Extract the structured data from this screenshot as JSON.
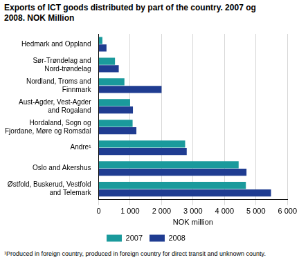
{
  "chart_data": {
    "type": "bar",
    "orientation": "horizontal",
    "title": "Exports of ICT goods distributed by part of the country. 2007 og\n2008. NOK Million",
    "x_label": "NOK million",
    "footnote": "¹Produced in foreign country, produced in foreign country for direct transit and unknown county.",
    "categories": [
      "Hedmark and Oppland",
      "Sør-Trøndelag and\nNord-trøndelag",
      "Nordland, Troms and\nFinnmark",
      "Aust-Agder, Vest-Agder\nand Rogaland",
      "Hordaland, Sogn og\nFjordane, Møre og Romsdal",
      "Andre¹",
      "Oslo and Akershus",
      "Østfold, Buskerud, Vestfold\nand Telemark"
    ],
    "series": [
      {
        "name": "2007",
        "color": "#1a9a9c",
        "values": [
          120,
          520,
          820,
          1000,
          1080,
          2750,
          4450,
          4680
        ]
      },
      {
        "name": "2008",
        "color": "#1f3c91",
        "values": [
          250,
          640,
          2000,
          1090,
          1200,
          2800,
          4700,
          5480
        ]
      }
    ],
    "xlim": [
      0,
      6000
    ],
    "xticks": [
      0,
      {
        "value": 1000,
        "label": "1 000"
      },
      {
        "value": 2000,
        "label": "2 000"
      },
      {
        "value": 3000,
        "label": "3 000"
      },
      {
        "value": 4000,
        "label": "4 000"
      },
      {
        "value": 5000,
        "label": "5 000"
      },
      {
        "value": 6000,
        "label": "6 000"
      }
    ],
    "grid": true,
    "legend": "bottom"
  }
}
